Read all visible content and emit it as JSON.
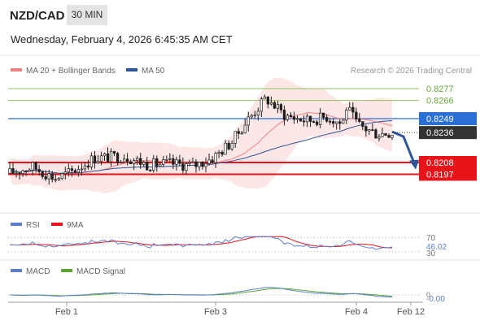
{
  "header": {
    "pair": "NZD/CAD",
    "timeframe": "30 MIN",
    "datetime": "Wednesday, February 4, 2026 6:45:35 AM CET"
  },
  "legend": {
    "ma20": "MA 20 + Bollinger Bands",
    "ma50": "MA 50",
    "credit": "Research © 2026 Trading Central",
    "rsi": "RSI",
    "rsi_ma": "9MA",
    "macd": "MACD",
    "macd_signal": "MACD Signal"
  },
  "colors": {
    "ma20": "#f08080",
    "ma50": "#2d5597",
    "bollinger_fill": "#fde2e2",
    "resistance_green": "#8fc25a",
    "pivot_blue": "#2a6fd6",
    "support_red": "#e8141a",
    "current_price_bg": "#333333",
    "rsi_line": "#5b7fcc",
    "rsi_ma_line": "#e8141a",
    "macd_line": "#5b7fcc",
    "macd_signal_line": "#5aa832",
    "candle": "#1f1f1f",
    "arrow": "#2d5597"
  },
  "chart_data": [
    {
      "type": "candlestick",
      "title": "NZD/CAD 30 MIN",
      "x_ticks": [
        "Feb 1",
        "Feb 3",
        "Feb 4",
        "Feb 12"
      ],
      "ylim": [
        0.817,
        0.8287
      ],
      "price_levels": [
        {
          "value": 0.8277,
          "label": "0.8277",
          "kind": "resistance"
        },
        {
          "value": 0.8266,
          "label": "0.8266",
          "kind": "resistance"
        },
        {
          "value": 0.8249,
          "label": "0.8249",
          "kind": "pivot"
        },
        {
          "value": 0.8236,
          "label": "0.8236",
          "kind": "last"
        },
        {
          "value": 0.8208,
          "label": "0.8208",
          "kind": "support"
        },
        {
          "value": 0.8197,
          "label": "0.8197",
          "kind": "support"
        }
      ],
      "forecast_arrow": {
        "from": 0.8236,
        "to": 0.8203
      }
    },
    {
      "type": "line",
      "title": "RSI",
      "levels": [
        "70",
        "30"
      ],
      "current_value": "46.02",
      "series": [
        {
          "name": "RSI"
        },
        {
          "name": "9MA"
        }
      ]
    },
    {
      "type": "line",
      "title": "MACD",
      "levels": [
        "0"
      ],
      "current_value": "-0.00",
      "series": [
        {
          "name": "MACD"
        },
        {
          "name": "MACD Signal"
        }
      ]
    }
  ]
}
